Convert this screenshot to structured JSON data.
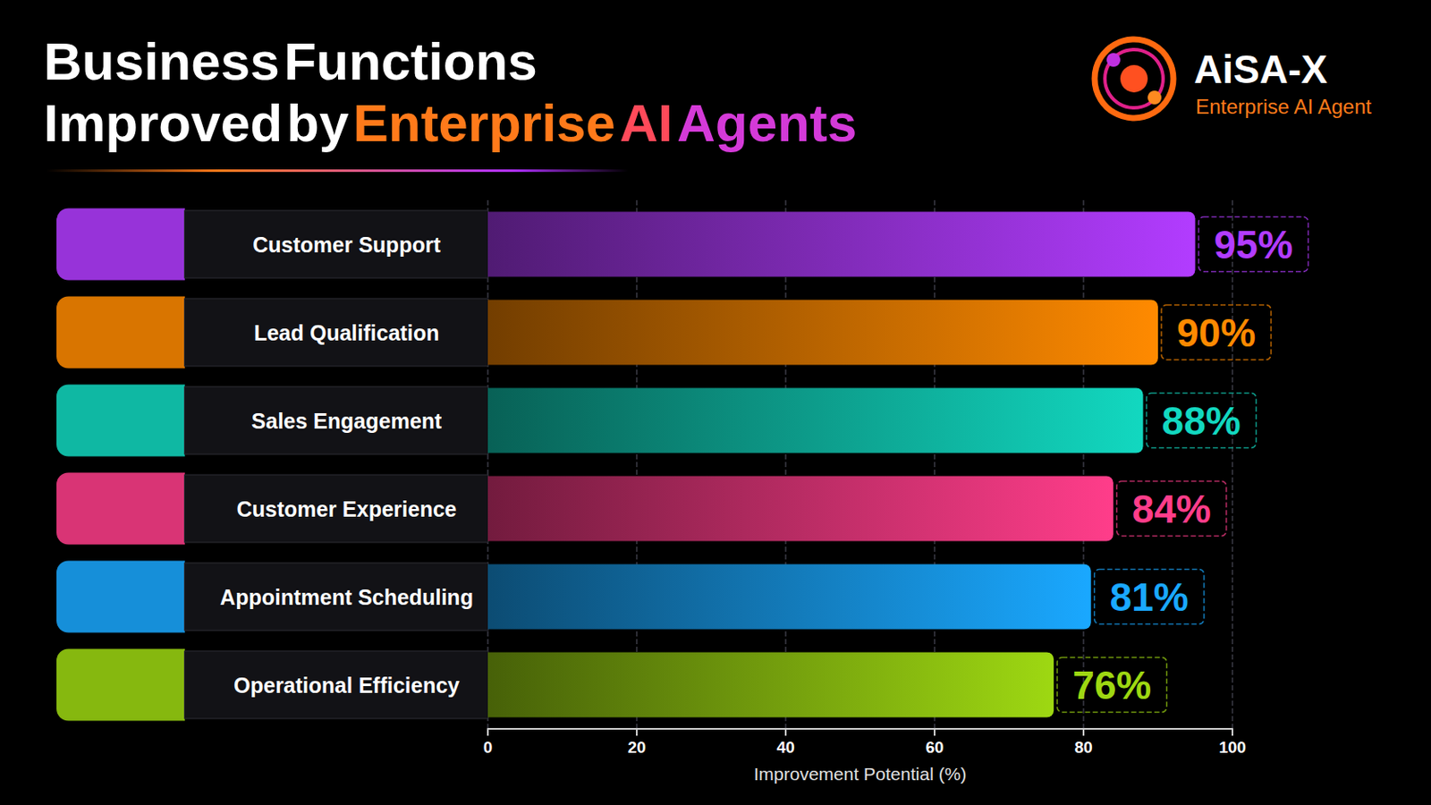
{
  "chart_data": {
    "type": "bar",
    "orientation": "horizontal",
    "title": "Business Functions Improved by Enterprise AI Agents",
    "annotations": [
      "AiSA-X",
      "Enterprise AI Agent"
    ],
    "categories": [
      "Customer Support",
      "Lead Qualification",
      "Sales Engagement",
      "Customer Experience",
      "Appointment Scheduling",
      "Operational Efficiency"
    ],
    "values": [
      95,
      90,
      88,
      84,
      81,
      76
    ],
    "value_labels": [
      "95%",
      "90%",
      "88%",
      "84%",
      "81%",
      "76%"
    ],
    "colors": [
      "#b23cff",
      "#ff8a00",
      "#12d8c0",
      "#ff3d8a",
      "#1aa8ff",
      "#9ed812"
    ],
    "xlabel": "Improvement Potential (%)",
    "xlim": [
      0,
      100
    ],
    "xticks": [
      0,
      20,
      40,
      60,
      80,
      100
    ],
    "grid": true,
    "data_labels": true
  }
}
